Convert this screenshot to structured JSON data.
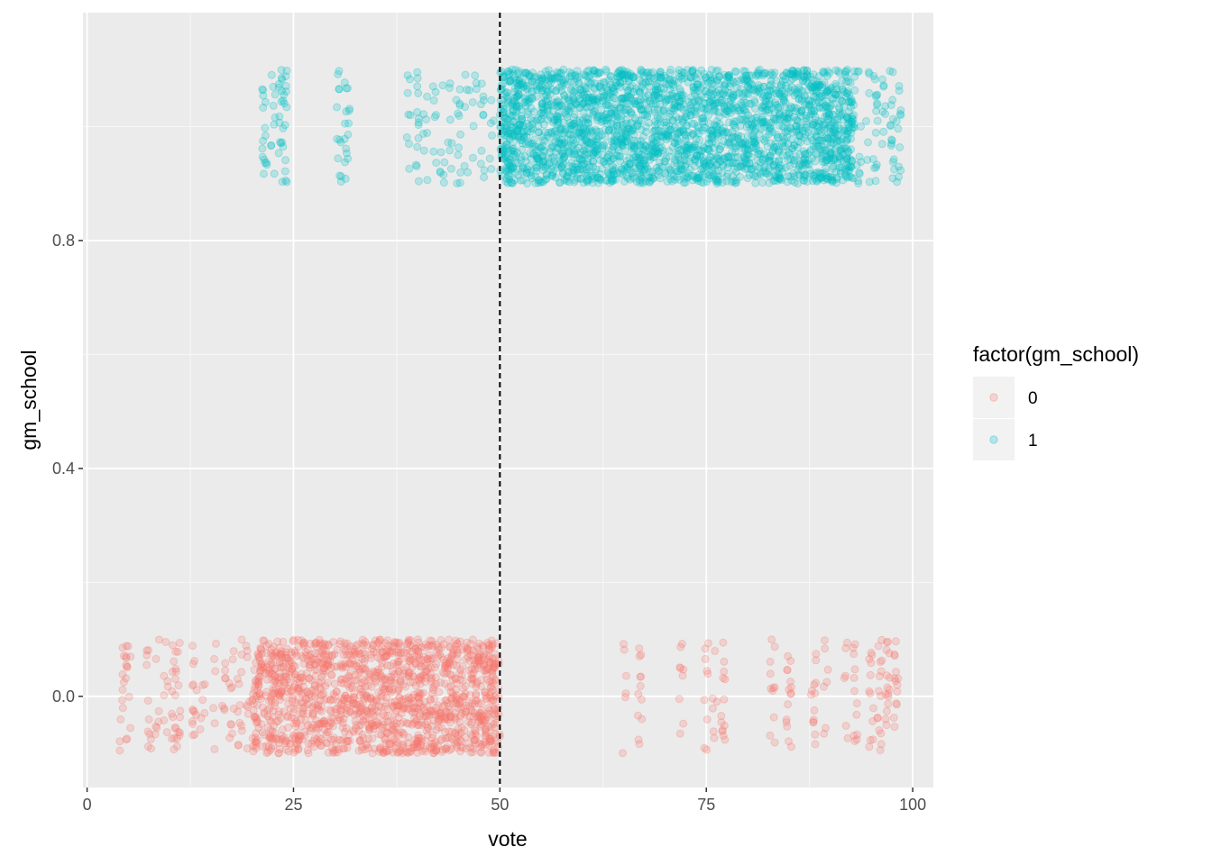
{
  "chart_data": {
    "type": "scatter",
    "title": "",
    "xlabel": "vote",
    "ylabel": "gm_school",
    "xlim": [
      -0.5,
      102.5
    ],
    "ylim": [
      -0.16,
      1.2
    ],
    "x_ticks": [
      0,
      25,
      50,
      75,
      100
    ],
    "x_tick_labels": [
      "0",
      "25",
      "50",
      "75",
      "100"
    ],
    "y_ticks": [
      0.0,
      0.4,
      0.8
    ],
    "y_tick_labels": [
      "0.0",
      "0.4",
      "0.8"
    ],
    "grid": true,
    "cutoff_line": {
      "x": 50,
      "style": "dashed",
      "color": "#000000"
    },
    "legend": {
      "title": "factor(gm_school)",
      "position": "right",
      "entries": [
        "0",
        "1"
      ]
    },
    "jitter_height": 0.1,
    "series": [
      {
        "name": "0",
        "color": "#F8766D",
        "base_y": 0,
        "dense_x_range": [
          20,
          50
        ],
        "sparse_x_range_low": [
          4,
          20
        ],
        "sparse_x_range_high": [
          65,
          98.5
        ],
        "sparse_columns_low": [
          4.2,
          5,
          7.5,
          8.5,
          9.5,
          10.5,
          11,
          13,
          14,
          15.5,
          16.5,
          17.5,
          18.5,
          19.5
        ],
        "sparse_columns_high": [
          65,
          67,
          72,
          75,
          76,
          77,
          83,
          85,
          88,
          89.5,
          92,
          93,
          95,
          96,
          97,
          98
        ]
      },
      {
        "name": "1",
        "color": "#00BFC4",
        "base_y": 1,
        "dense_x_range": [
          50,
          93
        ],
        "sparse_x_range_low": [
          21,
          50
        ],
        "sparse_x_range_high": [
          93,
          98.5
        ],
        "sparse_columns_low": [
          21.5,
          22.5,
          23.5,
          24,
          30.5,
          31.5,
          39,
          40,
          41,
          42,
          43,
          44,
          45,
          46,
          47,
          48,
          49
        ],
        "sparse_columns_high": [
          93.5,
          94.5,
          95.5,
          96.5,
          97.5,
          98.3
        ]
      }
    ]
  }
}
